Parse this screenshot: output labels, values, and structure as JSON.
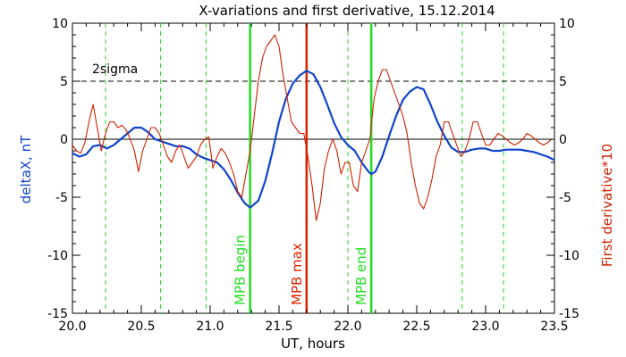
{
  "chart_data": {
    "type": "line",
    "title": "X-variations and first derivative, 15.12.2014",
    "xlabel": "UT, hours",
    "ylabel_left": "deltaX, nT",
    "ylabel_right": "First derivative*10",
    "xlim": [
      20.0,
      23.5
    ],
    "ylim": [
      -15,
      10
    ],
    "x_ticks": [
      20.0,
      20.5,
      21.0,
      21.5,
      22.0,
      22.5,
      23.0,
      23.5
    ],
    "x_tick_labels": [
      "20.0",
      "20.5",
      "21.0",
      "21.5",
      "22.0",
      "22.5",
      "23.0",
      "23.5"
    ],
    "y_ticks": [
      -15,
      -10,
      -5,
      0,
      5,
      10
    ],
    "y_tick_labels_left": [
      "-15",
      "-10",
      "-5",
      "0",
      "5",
      "10"
    ],
    "y_tick_labels_right": [
      "-15",
      "-10",
      "-5",
      "0",
      "5",
      "10"
    ],
    "threshold": {
      "label": "2sigma",
      "value": 5
    },
    "zero_line": 0,
    "green_dashed_lines": [
      20.24,
      20.64,
      20.97,
      22.0,
      22.83,
      23.13
    ],
    "markers": [
      {
        "label": "MPB begin",
        "x": 21.29,
        "color": "#22dd22"
      },
      {
        "label": "MPB max",
        "x": 21.7,
        "color": "#dd2200"
      },
      {
        "label": "MPB end",
        "x": 22.17,
        "color": "#22dd22"
      }
    ],
    "series": [
      {
        "name": "deltaX, nT",
        "color": "#1144cc",
        "x": [
          20.0,
          20.05,
          20.1,
          20.15,
          20.2,
          20.25,
          20.3,
          20.35,
          20.4,
          20.45,
          20.5,
          20.55,
          20.6,
          20.65,
          20.7,
          20.75,
          20.8,
          20.85,
          20.9,
          20.95,
          21.0,
          21.05,
          21.1,
          21.15,
          21.2,
          21.25,
          21.29,
          21.35,
          21.4,
          21.45,
          21.5,
          21.55,
          21.6,
          21.65,
          21.7,
          21.75,
          21.8,
          21.85,
          21.9,
          21.95,
          22.0,
          22.05,
          22.1,
          22.15,
          22.17,
          22.2,
          22.25,
          22.3,
          22.35,
          22.4,
          22.45,
          22.5,
          22.55,
          22.6,
          22.65,
          22.7,
          22.75,
          22.8,
          22.85,
          22.9,
          22.95,
          23.0,
          23.05,
          23.1,
          23.15,
          23.2,
          23.25,
          23.3,
          23.35,
          23.4,
          23.45,
          23.5
        ],
        "y": [
          -1.2,
          -1.5,
          -1.3,
          -0.6,
          -0.5,
          -0.8,
          -0.5,
          0.0,
          0.5,
          1.0,
          1.0,
          0.6,
          0.0,
          -0.2,
          -0.4,
          -0.6,
          -0.6,
          -0.8,
          -1.3,
          -1.6,
          -1.8,
          -2.0,
          -2.6,
          -3.5,
          -4.6,
          -5.5,
          -5.9,
          -5.3,
          -3.6,
          -1.2,
          1.5,
          3.5,
          4.8,
          5.5,
          5.9,
          5.6,
          4.5,
          3.0,
          1.4,
          0.2,
          -0.5,
          -1.0,
          -2.0,
          -2.8,
          -3.0,
          -2.8,
          -1.5,
          0.3,
          2.0,
          3.4,
          4.1,
          4.5,
          4.3,
          3.0,
          1.5,
          0.3,
          -0.7,
          -1.1,
          -1.1,
          -0.9,
          -0.8,
          -0.8,
          -1.0,
          -1.0,
          -0.9,
          -0.9,
          -0.9,
          -1.0,
          -1.1,
          -1.3,
          -1.5,
          -1.8
        ]
      },
      {
        "name": "First derivative*10",
        "color": "#cc2200",
        "x": [
          20.0,
          20.03,
          20.06,
          20.09,
          20.12,
          20.15,
          20.18,
          20.21,
          20.24,
          20.27,
          20.3,
          20.33,
          20.36,
          20.39,
          20.42,
          20.45,
          20.48,
          20.51,
          20.54,
          20.57,
          20.6,
          20.63,
          20.66,
          20.69,
          20.72,
          20.75,
          20.78,
          20.81,
          20.84,
          20.87,
          20.9,
          20.93,
          20.96,
          20.99,
          21.02,
          21.05,
          21.08,
          21.11,
          21.14,
          21.17,
          21.2,
          21.23,
          21.26,
          21.29,
          21.32,
          21.35,
          21.38,
          21.41,
          21.44,
          21.47,
          21.5,
          21.53,
          21.56,
          21.59,
          21.62,
          21.65,
          21.68,
          21.71,
          21.74,
          21.77,
          21.8,
          21.83,
          21.86,
          21.89,
          21.92,
          21.95,
          21.98,
          22.01,
          22.04,
          22.07,
          22.1,
          22.13,
          22.16,
          22.19,
          22.22,
          22.25,
          22.28,
          22.31,
          22.34,
          22.37,
          22.4,
          22.43,
          22.46,
          22.49,
          22.52,
          22.55,
          22.58,
          22.61,
          22.64,
          22.67,
          22.7,
          22.73,
          22.76,
          22.79,
          22.82,
          22.85,
          22.88,
          22.91,
          22.94,
          22.97,
          23.0,
          23.03,
          23.06,
          23.09,
          23.12,
          23.15,
          23.18,
          23.21,
          23.24,
          23.27,
          23.3,
          23.33,
          23.36,
          23.39,
          23.42,
          23.45,
          23.48,
          23.5
        ],
        "y": [
          -0.5,
          -1.0,
          -1.2,
          -0.3,
          1.5,
          3.0,
          1.0,
          -1.0,
          0.5,
          1.5,
          1.5,
          1.0,
          1.2,
          0.8,
          0.0,
          -1.0,
          -2.8,
          -1.0,
          0.0,
          1.0,
          1.0,
          0.5,
          -0.5,
          -1.5,
          -2.0,
          -1.0,
          -0.5,
          -1.5,
          -2.5,
          -2.0,
          -1.5,
          -0.5,
          0.0,
          0.2,
          -2.5,
          -1.5,
          -0.8,
          -1.2,
          -2.0,
          -3.0,
          -4.5,
          -5.0,
          -3.0,
          -1.0,
          2.0,
          5.0,
          7.0,
          8.0,
          8.5,
          9.0,
          8.0,
          5.5,
          3.5,
          1.5,
          1.0,
          0.5,
          0.5,
          -1.5,
          -4.0,
          -7.0,
          -5.5,
          -2.5,
          -1.0,
          0.0,
          -1.0,
          -3.0,
          -2.0,
          -2.0,
          -4.0,
          -4.5,
          -2.0,
          -1.0,
          0.0,
          3.5,
          5.0,
          6.0,
          6.0,
          5.0,
          4.0,
          3.0,
          2.0,
          0.5,
          -2.0,
          -4.0,
          -5.5,
          -6.0,
          -5.0,
          -3.5,
          -1.5,
          -0.5,
          1.5,
          1.5,
          0.5,
          -0.5,
          -1.5,
          -1.0,
          0.0,
          1.5,
          1.5,
          0.5,
          -0.5,
          -0.5,
          0.0,
          0.5,
          0.3,
          0.0,
          -0.3,
          -0.5,
          -0.3,
          0.0,
          0.5,
          0.3,
          0.0,
          -0.3,
          -0.5,
          -0.3,
          0.0,
          0.0
        ]
      }
    ],
    "colors": {
      "deltaX": "#1144cc",
      "derivative": "#cc2200",
      "green": "#22dd22",
      "red_marker": "#dd2200"
    }
  }
}
